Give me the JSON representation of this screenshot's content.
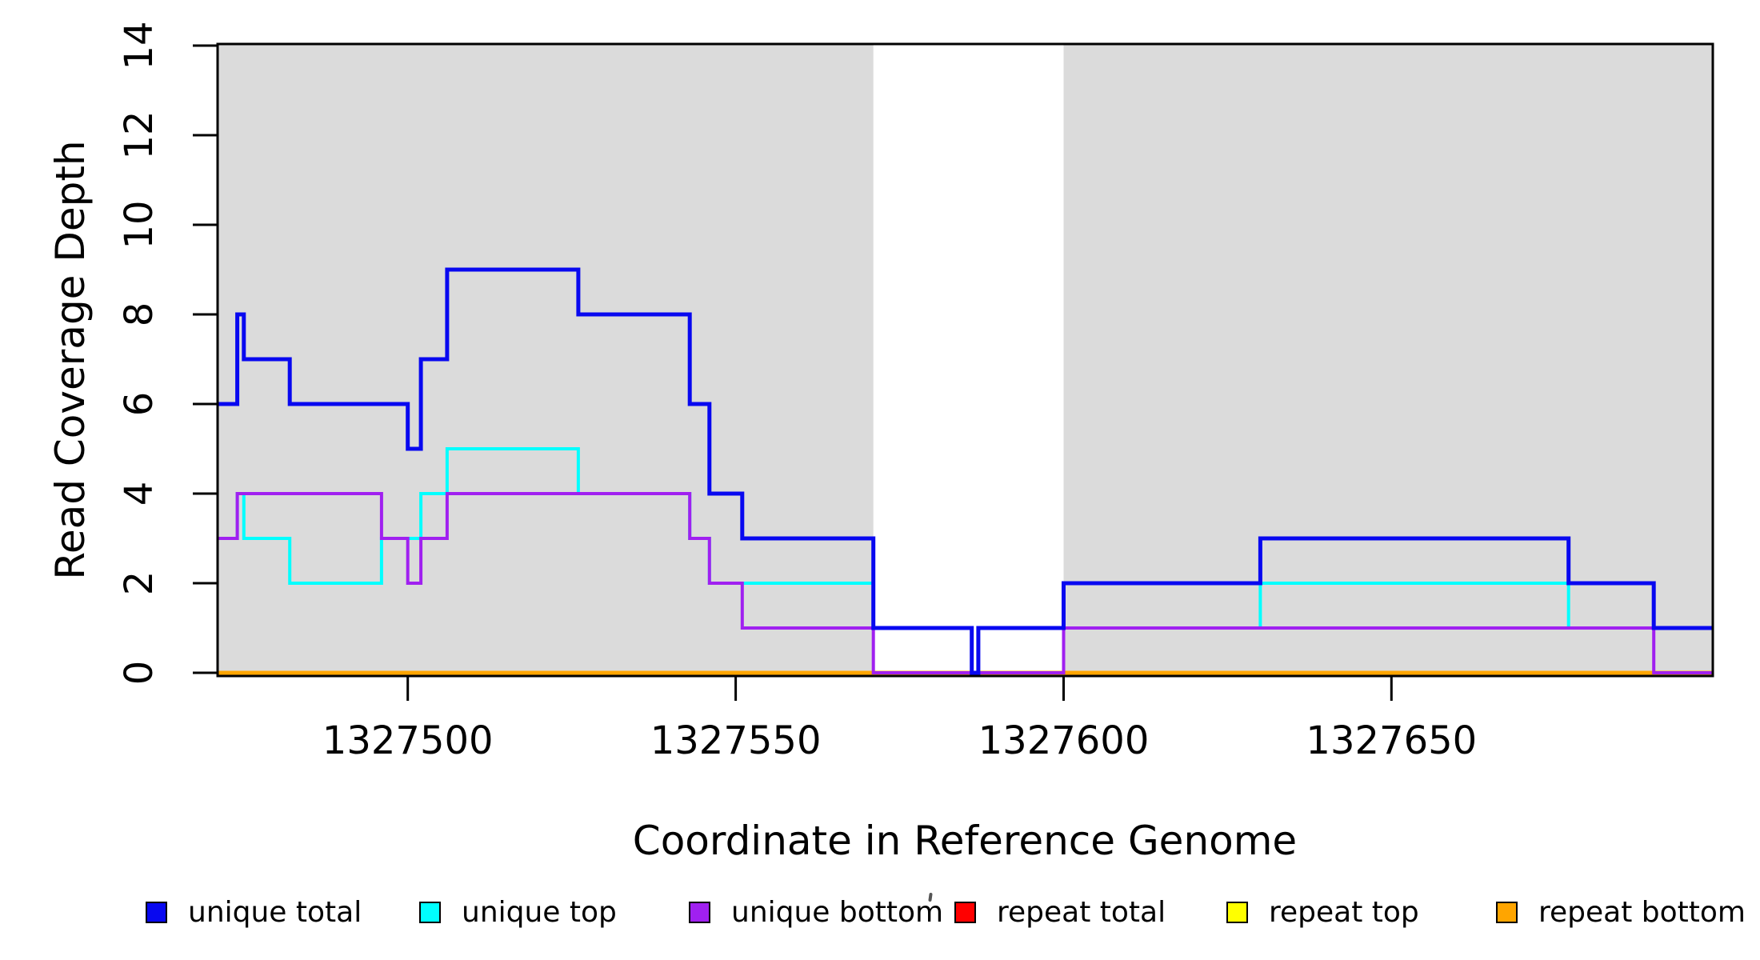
{
  "figure": {
    "background": "#FFFFFF",
    "plot_background_shading": "#DBDBDB",
    "axis_color": "#000000"
  },
  "chart_data": {
    "type": "line",
    "subtype": "step-function-coverage-plot",
    "title": "",
    "xlabel": "Coordinate in Reference Genome",
    "ylabel": "Read Coverage Depth",
    "xlim": [
      1327471,
      1327699
    ],
    "ylim": [
      0,
      14
    ],
    "xticks": [
      1327500,
      1327550,
      1327600,
      1327650
    ],
    "yticks": [
      0,
      2,
      4,
      6,
      8,
      10,
      12,
      14
    ],
    "grid": false,
    "legend_position": "bottom",
    "shaded_regions": {
      "color": "#DBDBDB",
      "comment": "gray = regions with coverage; white gap 1327571-1327600",
      "regions": [
        [
          1327471,
          1327571
        ],
        [
          1327600,
          1327699
        ]
      ]
    },
    "series": [
      {
        "name": "unique total",
        "color": "#0808F0",
        "lw": 5,
        "steps": [
          [
            1327471,
            6
          ],
          [
            1327474,
            8
          ],
          [
            1327475,
            7
          ],
          [
            1327482,
            6
          ],
          [
            1327500,
            5
          ],
          [
            1327502,
            7
          ],
          [
            1327506,
            9
          ],
          [
            1327526,
            8
          ],
          [
            1327543,
            6
          ],
          [
            1327546,
            4
          ],
          [
            1327551,
            3
          ],
          [
            1327571,
            1
          ],
          [
            1327586,
            0
          ],
          [
            1327587,
            1
          ],
          [
            1327600,
            2
          ],
          [
            1327630,
            3
          ],
          [
            1327677,
            2
          ],
          [
            1327690,
            1
          ]
        ]
      },
      {
        "name": "unique top",
        "color": "#00FFFF",
        "lw": 4,
        "steps": [
          [
            1327471,
            3
          ],
          [
            1327474,
            4
          ],
          [
            1327475,
            3
          ],
          [
            1327482,
            2
          ],
          [
            1327496,
            3
          ],
          [
            1327502,
            4
          ],
          [
            1327506,
            5
          ],
          [
            1327526,
            4
          ],
          [
            1327543,
            3
          ],
          [
            1327546,
            2
          ],
          [
            1327571,
            1
          ],
          [
            1327586,
            0
          ],
          [
            1327587,
            1
          ],
          [
            1327630,
            2
          ],
          [
            1327677,
            1
          ]
        ]
      },
      {
        "name": "unique bottom",
        "color": "#A020F0",
        "lw": 4,
        "steps": [
          [
            1327471,
            3
          ],
          [
            1327474,
            4
          ],
          [
            1327496,
            3
          ],
          [
            1327500,
            2
          ],
          [
            1327502,
            3
          ],
          [
            1327506,
            4
          ],
          [
            1327543,
            3
          ],
          [
            1327546,
            2
          ],
          [
            1327551,
            1
          ],
          [
            1327571,
            0
          ],
          [
            1327600,
            1
          ],
          [
            1327690,
            0
          ]
        ]
      },
      {
        "name": "repeat total",
        "color": "#FF0000",
        "lw": 4,
        "steps": [
          [
            1327471,
            0
          ]
        ]
      },
      {
        "name": "repeat top",
        "color": "#FFFF00",
        "lw": 4,
        "steps": [
          [
            1327471,
            0
          ]
        ]
      },
      {
        "name": "repeat bottom",
        "color": "#FFA500",
        "lw": 5,
        "steps": [
          [
            1327471,
            0
          ]
        ]
      }
    ],
    "draw_order": [
      "repeat top",
      "repeat total",
      "repeat bottom",
      "unique top",
      "unique bottom",
      "unique total"
    ],
    "legend": {
      "labels": [
        "unique total",
        "unique top",
        "unique bottom",
        "repeat total",
        "repeat top",
        "repeat bottom"
      ]
    }
  },
  "labels": {
    "xlabel": "Coordinate in Reference Genome",
    "ylabel": "Read Coverage Depth"
  }
}
